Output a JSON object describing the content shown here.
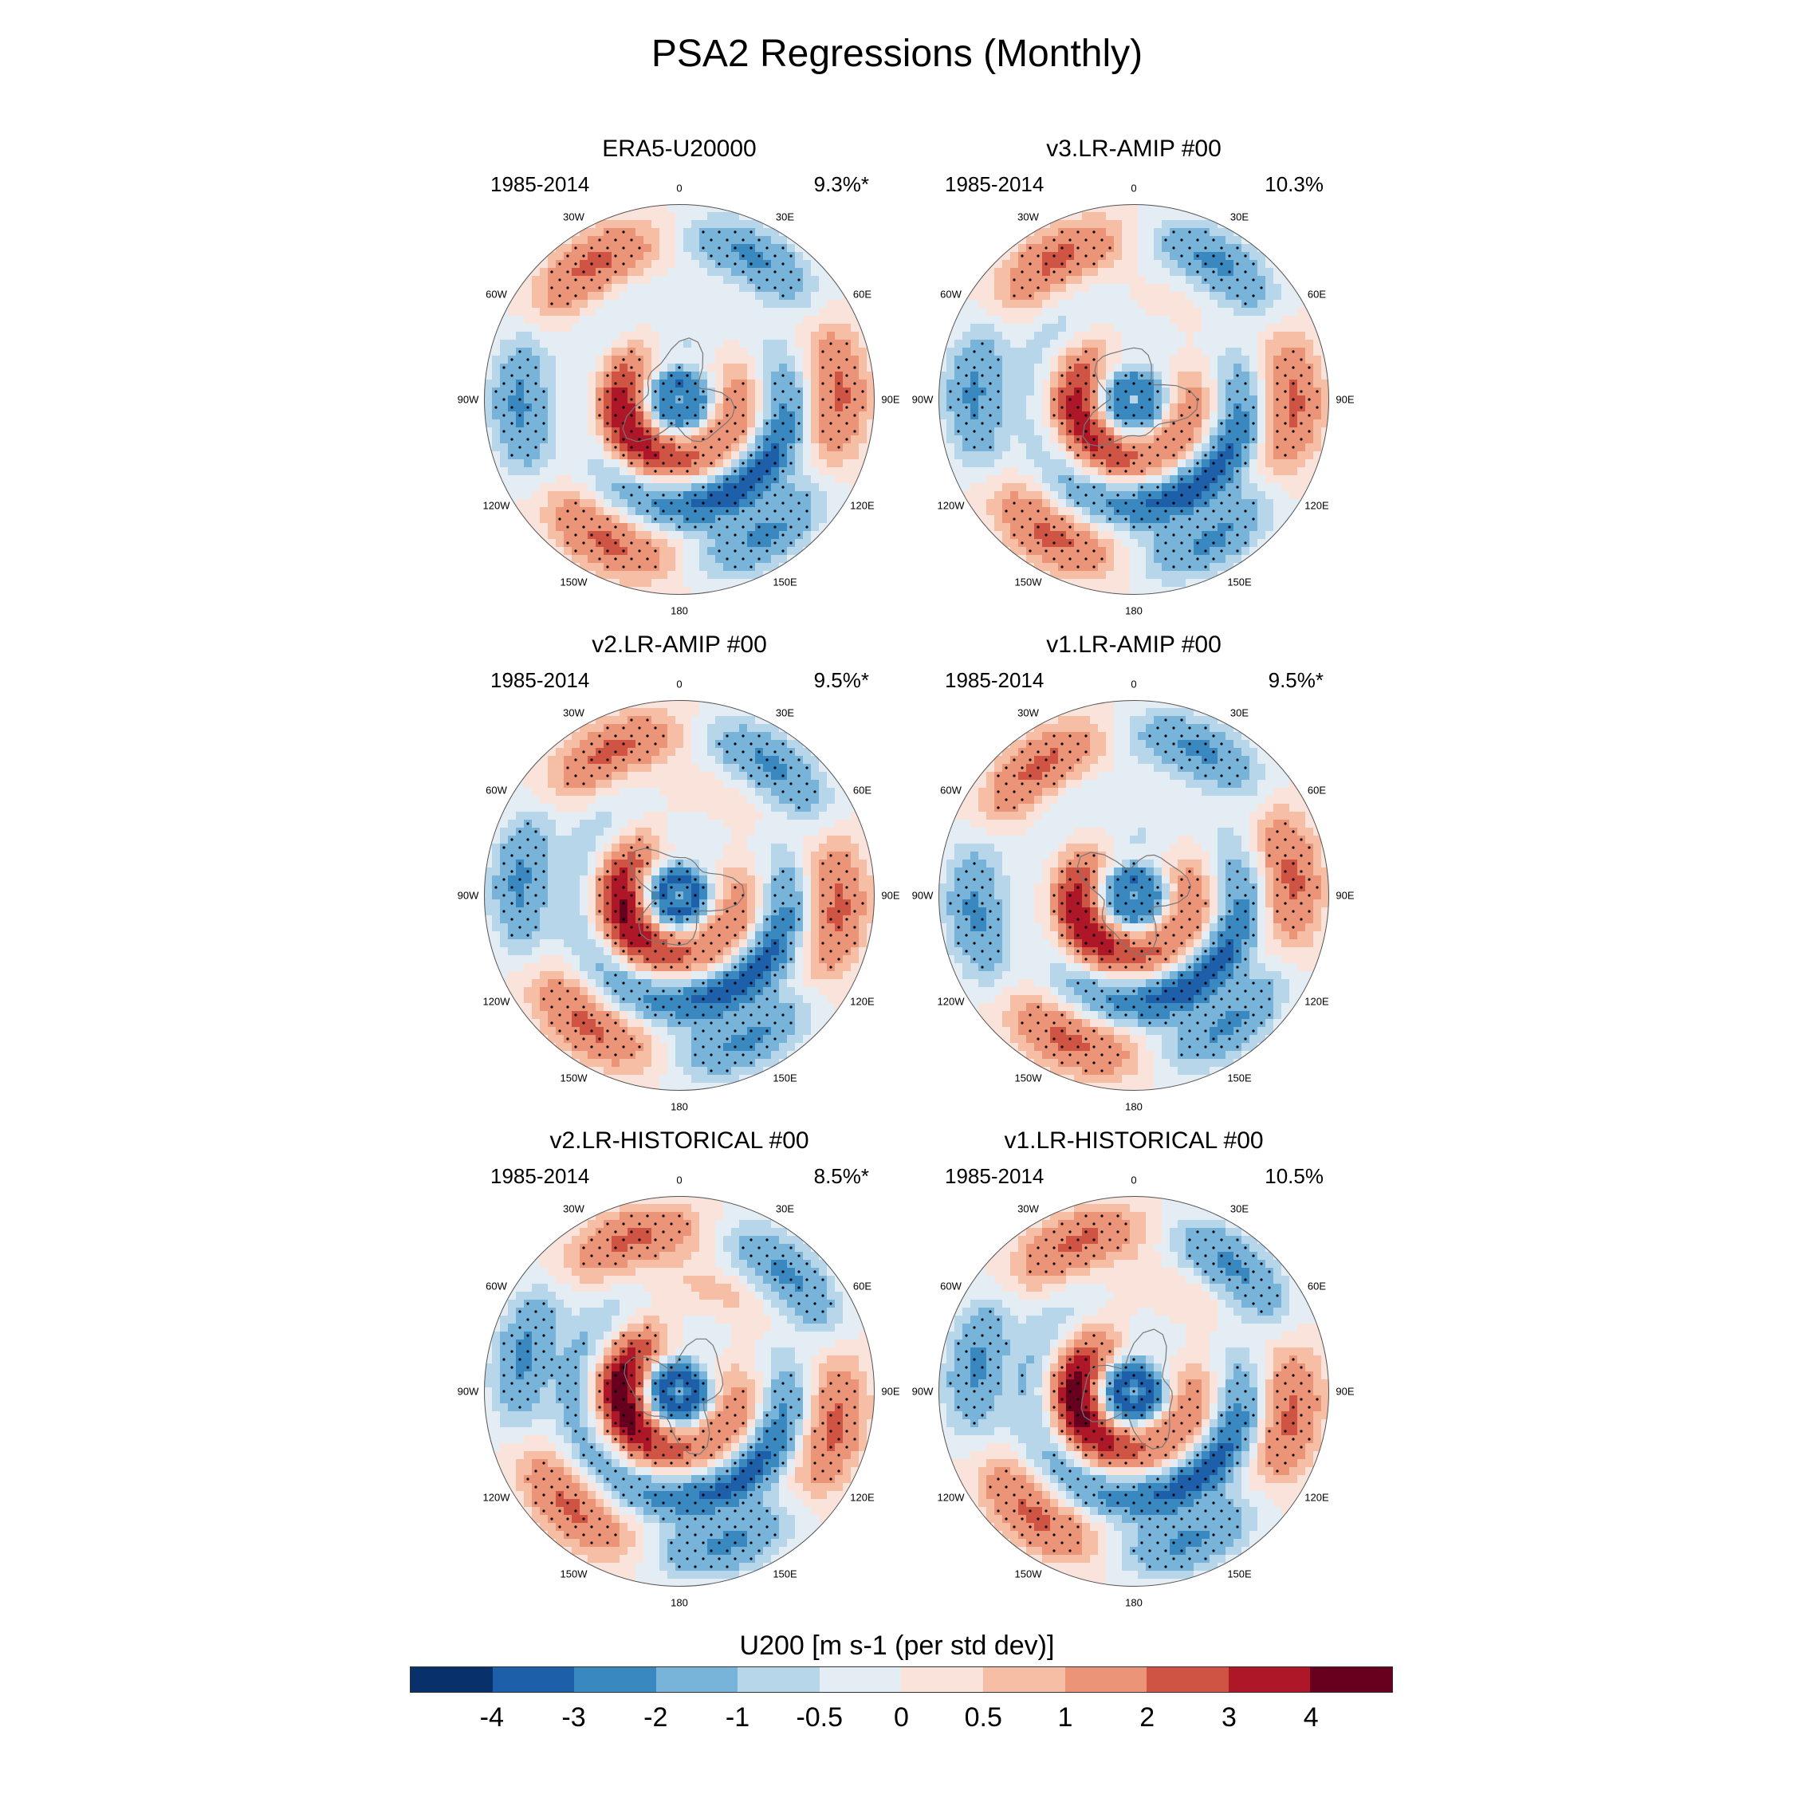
{
  "title": "PSA2 Regressions (Monthly)",
  "panels": [
    {
      "title": "ERA5-U20000",
      "period": "1985-2014",
      "percent": "9.3%*"
    },
    {
      "title": "v3.LR-AMIP  #00",
      "period": "1985-2014",
      "percent": "10.3%"
    },
    {
      "title": "v2.LR-AMIP  #00",
      "period": "1985-2014",
      "percent": "9.5%*"
    },
    {
      "title": "v1.LR-AMIP  #00",
      "period": "1985-2014",
      "percent": "9.5%*"
    },
    {
      "title": "v2.LR-HISTORICAL  #00",
      "period": "1985-2014",
      "percent": "8.5%*"
    },
    {
      "title": "v1.LR-HISTORICAL  #00",
      "period": "1985-2014",
      "percent": "10.5%"
    }
  ],
  "longitude_labels": [
    "0",
    "30E",
    "60E",
    "90E",
    "120E",
    "150E",
    "180",
    "150W",
    "120W",
    "90W",
    "60W",
    "30W"
  ],
  "colorbar": {
    "title": "U200 [m s-1 (per std dev)]",
    "tick_labels": [
      "-4",
      "-3",
      "-2",
      "-1",
      "-0.5",
      "0",
      "0.5",
      "1",
      "2",
      "3",
      "4"
    ],
    "colors": [
      "#08306b",
      "#1d5fa8",
      "#3a88c0",
      "#78b4d9",
      "#b7d6e9",
      "#e4edf3",
      "#f9e3da",
      "#f6bea5",
      "#ec9477",
      "#d05443",
      "#ae1727",
      "#67001f"
    ]
  }
}
